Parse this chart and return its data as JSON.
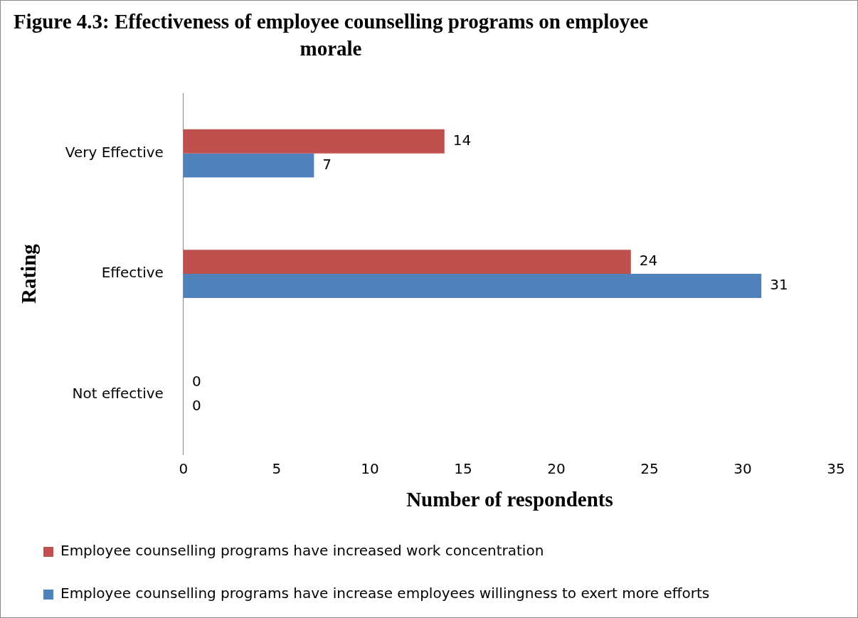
{
  "chart_data": {
    "type": "bar",
    "orientation": "horizontal",
    "title": "Figure 4.3: Effectiveness of employee counselling programs on employee morale",
    "xlabel": "Number of respondents",
    "ylabel": "Rating",
    "categories": [
      "Very Effective",
      "Effective",
      "Not effective"
    ],
    "series": [
      {
        "name": "Employee counselling programs have increased work concentration",
        "color": "#c0504d",
        "values": [
          14,
          24,
          0
        ]
      },
      {
        "name": "Employee counselling programs have increase employees willingness to exert more efforts",
        "color": "#4f81bd",
        "values": [
          7,
          31,
          0
        ]
      }
    ],
    "xlim": [
      0,
      35
    ],
    "xticks": [
      0,
      5,
      10,
      15,
      20,
      25,
      30,
      35
    ],
    "data_labels": true,
    "grid": false,
    "legend": "bottom"
  }
}
